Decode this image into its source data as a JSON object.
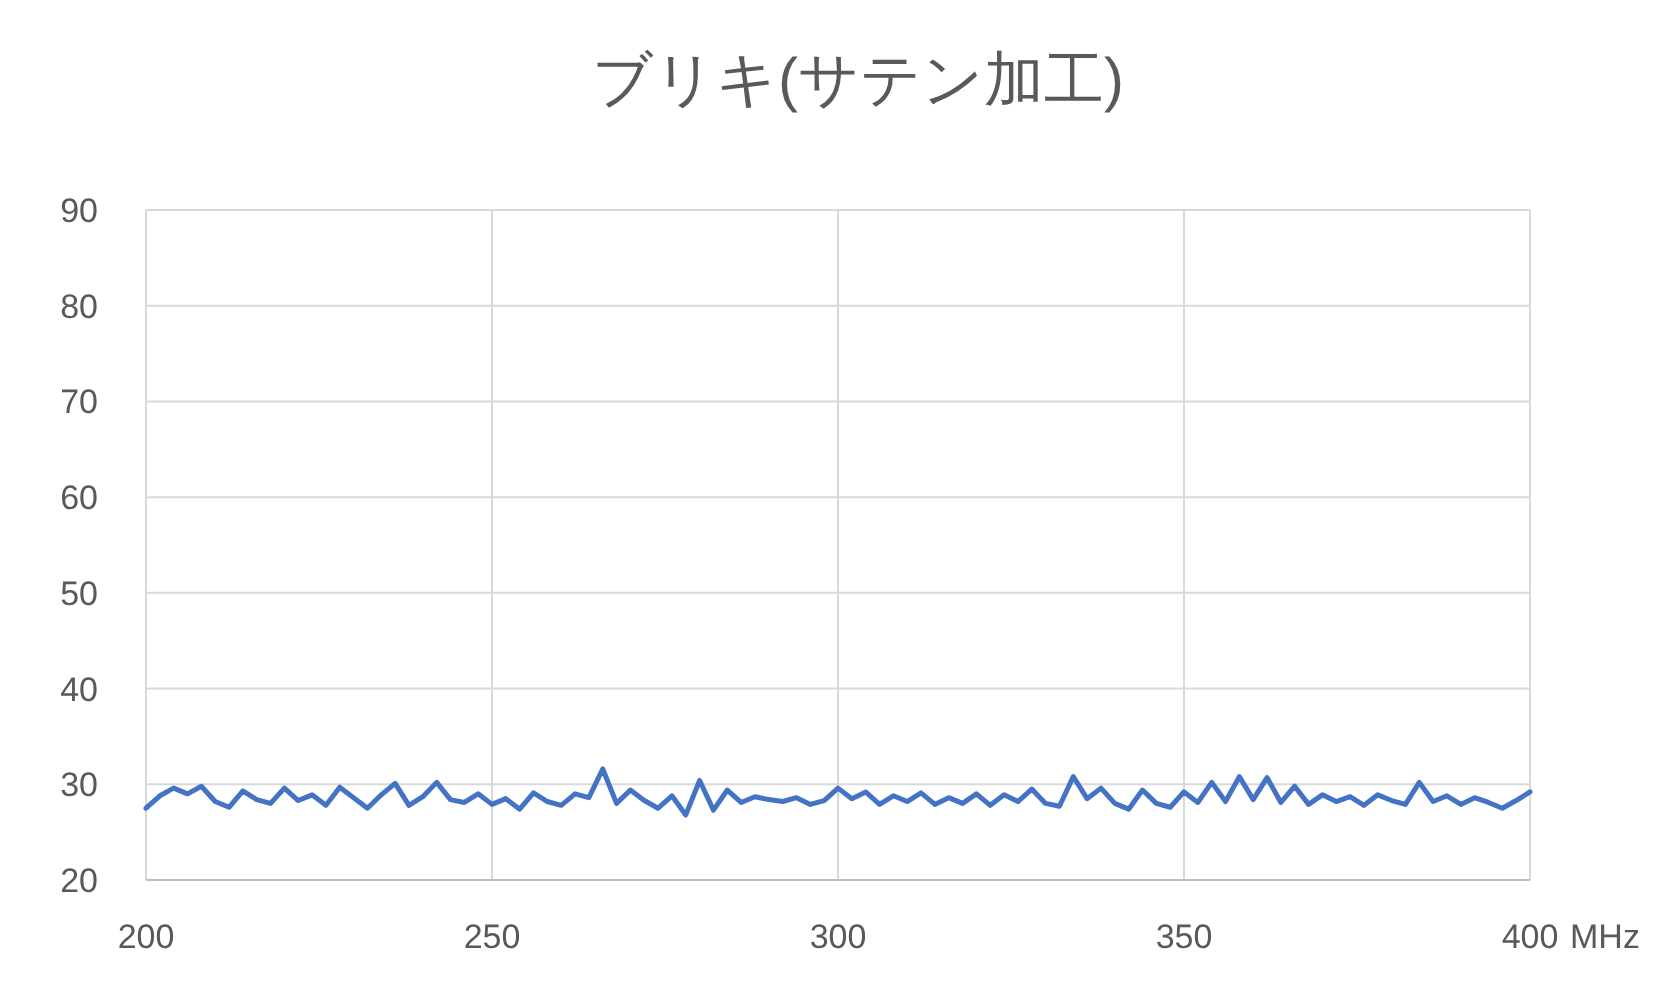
{
  "chart_data": {
    "type": "line",
    "title": "ブリキ(サテン加工)",
    "xlabel": "MHz",
    "xlim": [
      200,
      400
    ],
    "xticks": [
      200,
      250,
      300,
      350,
      400
    ],
    "ylim": [
      20,
      90
    ],
    "yticks": [
      20,
      30,
      40,
      50,
      60,
      70,
      80,
      90
    ],
    "grid": true,
    "line_style": "solid",
    "series": [
      {
        "color": "#4472c4",
        "x": [
          200,
          202,
          204,
          206,
          208,
          210,
          212,
          214,
          216,
          218,
          220,
          222,
          224,
          226,
          228,
          230,
          232,
          234,
          236,
          238,
          240,
          242,
          244,
          246,
          248,
          250,
          252,
          254,
          256,
          258,
          260,
          262,
          264,
          266,
          268,
          270,
          272,
          274,
          276,
          278,
          280,
          282,
          284,
          286,
          288,
          290,
          292,
          294,
          296,
          298,
          300,
          302,
          304,
          306,
          308,
          310,
          312,
          314,
          316,
          318,
          320,
          322,
          324,
          326,
          328,
          330,
          332,
          334,
          336,
          338,
          340,
          342,
          344,
          346,
          348,
          350,
          352,
          354,
          356,
          358,
          360,
          362,
          364,
          366,
          368,
          370,
          372,
          374,
          376,
          378,
          380,
          382,
          384,
          386,
          388,
          390,
          392,
          394,
          396,
          398,
          400
        ],
        "values": [
          27.5,
          28.8,
          29.6,
          29.0,
          29.8,
          28.2,
          27.6,
          29.3,
          28.4,
          28.0,
          29.6,
          28.3,
          28.9,
          27.8,
          29.7,
          28.6,
          27.5,
          28.9,
          30.1,
          27.8,
          28.7,
          30.2,
          28.4,
          28.1,
          29.0,
          27.9,
          28.5,
          27.4,
          29.1,
          28.2,
          27.8,
          29.0,
          28.6,
          31.6,
          28.0,
          29.4,
          28.3,
          27.5,
          28.8,
          26.8,
          30.4,
          27.3,
          29.4,
          28.1,
          28.7,
          28.4,
          28.2,
          28.6,
          27.9,
          28.3,
          29.6,
          28.5,
          29.2,
          27.9,
          28.8,
          28.2,
          29.1,
          27.9,
          28.6,
          28.0,
          29.0,
          27.8,
          28.9,
          28.2,
          29.5,
          28.0,
          27.7,
          30.8,
          28.5,
          29.6,
          28.0,
          27.4,
          29.4,
          28.0,
          27.6,
          29.2,
          28.1,
          30.2,
          28.2,
          30.8,
          28.4,
          30.7,
          28.1,
          29.8,
          27.9,
          28.9,
          28.2,
          28.7,
          27.8,
          28.9,
          28.3,
          27.9,
          30.2,
          28.2,
          28.8,
          27.9,
          28.6,
          28.1,
          27.5,
          28.3,
          29.2
        ]
      }
    ]
  }
}
